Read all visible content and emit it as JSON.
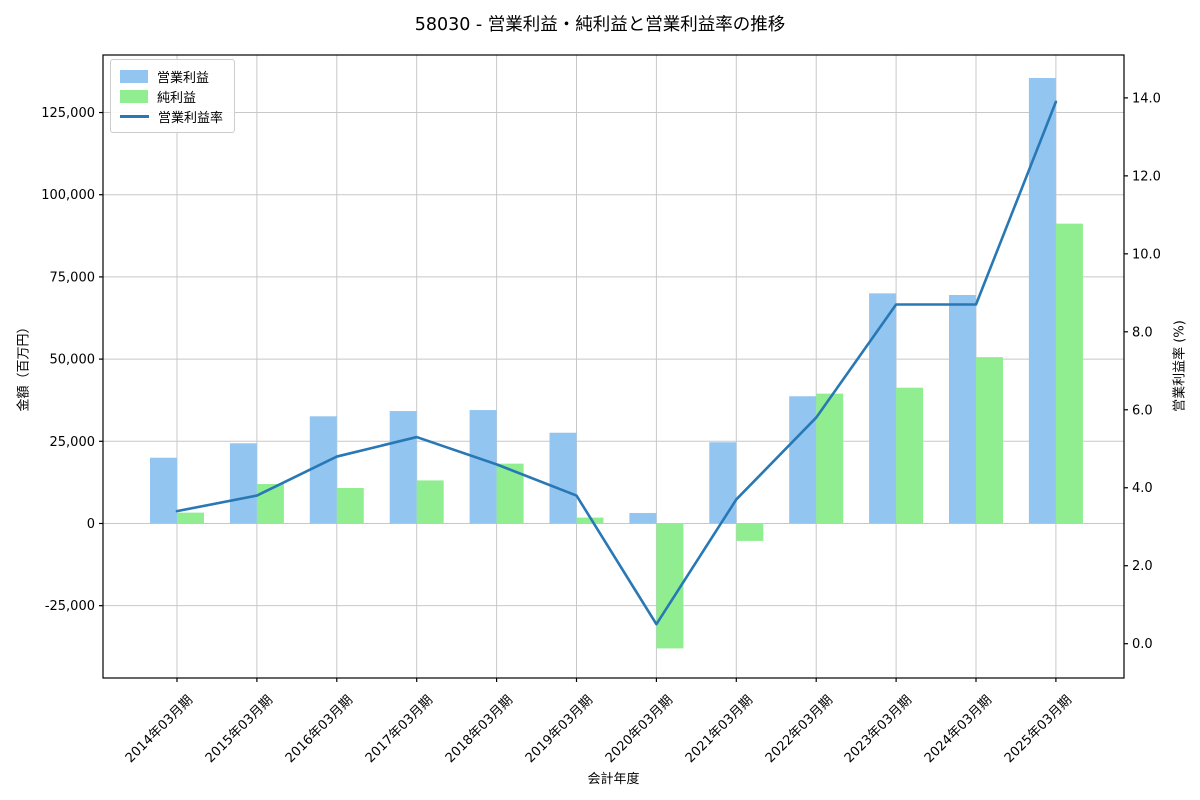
{
  "title": "58030 - 営業利益・純利益と営業利益率の推移",
  "chart_data": {
    "type": "bar",
    "subtype": "grouped-bars-with-line-overlay",
    "title": "58030 - 営業利益・純利益と営業利益率の推移",
    "xlabel": "会計年度",
    "ylabel_left": "金額（百万円）",
    "ylabel_right": "営業利益率 (%)",
    "grid": true,
    "legend_position": "upper left",
    "categories": [
      "2014年03月期",
      "2015年03月期",
      "2016年03月期",
      "2017年03月期",
      "2018年03月期",
      "2019年03月期",
      "2020年03月期",
      "2021年03月期",
      "2022年03月期",
      "2023年03月期",
      "2024年03月期",
      "2025年03月期"
    ],
    "series": [
      {
        "name": "営業利益",
        "type": "bar",
        "axis": "left",
        "color": "#92c5f0",
        "values": [
          20000,
          24400,
          32600,
          34200,
          34500,
          27600,
          3200,
          24700,
          38700,
          70000,
          69500,
          135500
        ]
      },
      {
        "name": "純利益",
        "type": "bar",
        "axis": "left",
        "color": "#90ee90",
        "values": [
          3300,
          12000,
          10800,
          13100,
          18200,
          1800,
          -38000,
          -5300,
          39500,
          41300,
          50600,
          91200
        ]
      },
      {
        "name": "営業利益率",
        "type": "line",
        "axis": "right",
        "color": "#2878b5",
        "values": [
          3.4,
          3.8,
          4.8,
          5.3,
          4.6,
          3.8,
          0.5,
          3.7,
          5.8,
          8.7,
          8.7,
          13.9
        ]
      }
    ],
    "left_axis": {
      "ticks": [
        -25000,
        0,
        25000,
        50000,
        75000,
        100000,
        125000
      ],
      "range": [
        -47000,
        142500
      ]
    },
    "right_axis": {
      "ticks": [
        0,
        2,
        4,
        6,
        8,
        10,
        12,
        14
      ],
      "range": [
        -0.88,
        15.1
      ]
    },
    "colors": {
      "grid": "#c8c8c8",
      "spine": "#000000",
      "text": "#000000",
      "background": "#ffffff"
    }
  }
}
